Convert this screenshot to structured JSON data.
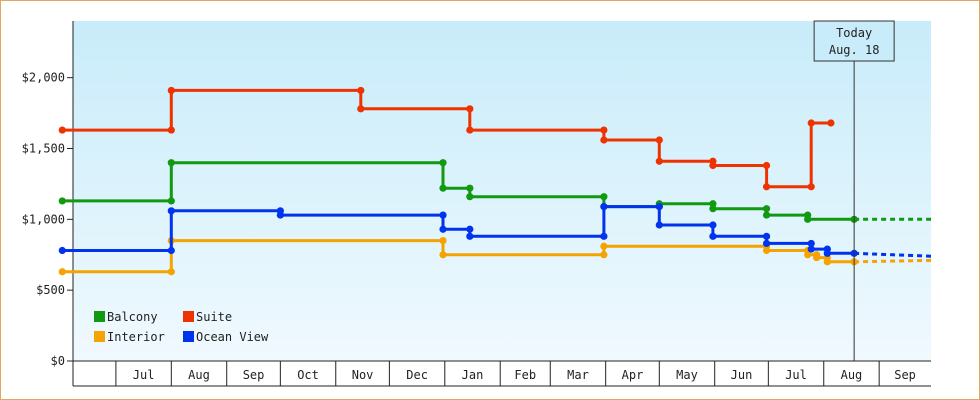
{
  "chart_data": {
    "type": "line",
    "step": true,
    "title": "",
    "xlabel": "",
    "ylabel": "",
    "x_range": [
      "2024-06-01",
      "2025-09-30"
    ],
    "ylim": [
      0,
      2400
    ],
    "y_ticks": [
      0,
      500,
      1000,
      1500,
      2000
    ],
    "y_tick_labels": [
      "$0",
      "$500",
      "$1,000",
      "$1,500",
      "$2,000"
    ],
    "month_labels": [
      "Jul",
      "Aug",
      "Sep",
      "Oct",
      "Nov",
      "Dec",
      "Jan",
      "Feb",
      "Mar",
      "Apr",
      "May",
      "Jun",
      "Jul",
      "Aug",
      "Sep"
    ],
    "grid": false,
    "legend": "bottom-left",
    "today": {
      "label_line1": "Today",
      "label_line2": "Aug. 18",
      "date": "2025-08-18"
    },
    "series": [
      {
        "name": "Balcony",
        "color": "#119911",
        "points": [
          [
            "2024-06-01",
            1130
          ],
          [
            "2024-08-01",
            1130
          ],
          [
            "2024-08-01",
            1400
          ],
          [
            "2024-12-31",
            1400
          ],
          [
            "2024-12-31",
            1220
          ],
          [
            "2025-01-15",
            1220
          ],
          [
            "2025-01-15",
            1160
          ],
          [
            "2025-03-31",
            1160
          ],
          [
            "2025-03-31",
            1090
          ],
          [
            "2025-05-01",
            1090
          ],
          [
            "2025-05-01",
            1110
          ],
          [
            "2025-05-31",
            1110
          ],
          [
            "2025-05-31",
            1075
          ],
          [
            "2025-06-30",
            1075
          ],
          [
            "2025-06-30",
            1030
          ],
          [
            "2025-07-23",
            1030
          ],
          [
            "2025-07-23",
            1000
          ],
          [
            "2025-08-18",
            1000
          ]
        ],
        "projection": [
          [
            "2025-08-18",
            1000
          ],
          [
            "2025-09-30",
            1000
          ]
        ]
      },
      {
        "name": "Suite",
        "color": "#ee3300",
        "points": [
          [
            "2024-06-01",
            1630
          ],
          [
            "2024-08-01",
            1630
          ],
          [
            "2024-08-01",
            1910
          ],
          [
            "2024-11-15",
            1910
          ],
          [
            "2024-11-15",
            1780
          ],
          [
            "2025-01-15",
            1780
          ],
          [
            "2025-01-15",
            1630
          ],
          [
            "2025-03-31",
            1630
          ],
          [
            "2025-03-31",
            1560
          ],
          [
            "2025-05-01",
            1560
          ],
          [
            "2025-05-01",
            1410
          ],
          [
            "2025-05-31",
            1410
          ],
          [
            "2025-05-31",
            1380
          ],
          [
            "2025-06-30",
            1380
          ],
          [
            "2025-06-30",
            1230
          ],
          [
            "2025-07-25",
            1230
          ],
          [
            "2025-07-25",
            1680
          ],
          [
            "2025-08-05",
            1680
          ]
        ],
        "projection": []
      },
      {
        "name": "Interior",
        "color": "#f4a300",
        "points": [
          [
            "2024-06-01",
            630
          ],
          [
            "2024-08-01",
            630
          ],
          [
            "2024-08-01",
            850
          ],
          [
            "2024-12-31",
            850
          ],
          [
            "2024-12-31",
            750
          ],
          [
            "2025-03-31",
            750
          ],
          [
            "2025-03-31",
            810
          ],
          [
            "2025-06-30",
            810
          ],
          [
            "2025-06-30",
            780
          ],
          [
            "2025-07-23",
            780
          ],
          [
            "2025-07-23",
            750
          ],
          [
            "2025-07-28",
            750
          ],
          [
            "2025-07-28",
            730
          ],
          [
            "2025-08-03",
            730
          ],
          [
            "2025-08-03",
            700
          ],
          [
            "2025-08-18",
            700
          ]
        ],
        "projection": [
          [
            "2025-08-18",
            700
          ],
          [
            "2025-09-30",
            710
          ]
        ]
      },
      {
        "name": "Ocean View",
        "color": "#0033ee",
        "points": [
          [
            "2024-06-01",
            780
          ],
          [
            "2024-08-01",
            780
          ],
          [
            "2024-08-01",
            1060
          ],
          [
            "2024-10-01",
            1060
          ],
          [
            "2024-10-01",
            1030
          ],
          [
            "2024-12-31",
            1030
          ],
          [
            "2024-12-31",
            930
          ],
          [
            "2025-01-15",
            930
          ],
          [
            "2025-01-15",
            880
          ],
          [
            "2025-03-31",
            880
          ],
          [
            "2025-03-31",
            1090
          ],
          [
            "2025-05-01",
            1090
          ],
          [
            "2025-05-01",
            960
          ],
          [
            "2025-05-31",
            960
          ],
          [
            "2025-05-31",
            880
          ],
          [
            "2025-06-30",
            880
          ],
          [
            "2025-06-30",
            830
          ],
          [
            "2025-07-25",
            830
          ],
          [
            "2025-07-25",
            790
          ],
          [
            "2025-08-03",
            790
          ],
          [
            "2025-08-03",
            760
          ],
          [
            "2025-08-18",
            760
          ]
        ],
        "projection": [
          [
            "2025-08-18",
            760
          ],
          [
            "2025-09-30",
            740
          ]
        ]
      }
    ]
  }
}
